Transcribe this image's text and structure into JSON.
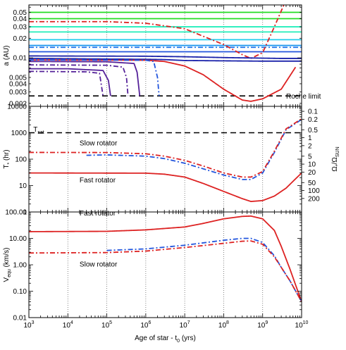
{
  "chart_data": [
    {
      "type": "line",
      "panel": "top",
      "ylabel": "a (AU)",
      "yscale": "log",
      "xscale": "log",
      "xlim": [
        1000,
        10000000000
      ],
      "ylim": [
        0.0018,
        0.065
      ],
      "grid": "vertical dotted at decades",
      "y_ticks": [
        {
          "v": 0.05,
          "label": "0.05"
        },
        {
          "v": 0.04,
          "label": "0.04"
        },
        {
          "v": 0.03,
          "label": "0.03"
        },
        {
          "v": 0.02,
          "label": "0.02"
        },
        {
          "v": 0.01,
          "label": "0.01"
        },
        {
          "v": 0.005,
          "label": "0.005"
        },
        {
          "v": 0.004,
          "label": "0.004"
        },
        {
          "v": 0.003,
          "label": "0.003"
        },
        {
          "v": 0.002,
          "label": "0.002"
        }
      ],
      "annotations": [
        {
          "text": "Roche limit",
          "x": 4000000000,
          "y": 0.0026
        }
      ],
      "roche_limit": 0.0026,
      "series": [
        {
          "color": "#22dd22",
          "style": "solid",
          "x": [
            1000,
            10000000000
          ],
          "y": [
            0.05,
            0.05
          ]
        },
        {
          "color": "#22dd22",
          "style": "solid",
          "x": [
            1000,
            10000000000
          ],
          "y": [
            0.04,
            0.04
          ]
        },
        {
          "color": "#22eebb",
          "style": "solid",
          "x": [
            1000,
            10000000000
          ],
          "y": [
            0.03,
            0.03
          ]
        },
        {
          "color": "#22eebb",
          "style": "solid",
          "x": [
            1000,
            10000000000
          ],
          "y": [
            0.025,
            0.025
          ]
        },
        {
          "color": "#22ccee",
          "style": "solid",
          "x": [
            1000,
            10000000000
          ],
          "y": [
            0.019,
            0.019
          ]
        },
        {
          "color": "#2299ee",
          "style": "solid",
          "x": [
            1000,
            10000000000
          ],
          "y": [
            0.0155,
            0.0155
          ]
        },
        {
          "color": "#2277ee",
          "style": "dashdot",
          "x": [
            1000,
            1000000000,
            10000000000
          ],
          "y": [
            0.0145,
            0.0145,
            0.0145
          ]
        },
        {
          "color": "#2255dd",
          "style": "solid",
          "x": [
            1000,
            10000000000
          ],
          "y": [
            0.0124,
            0.0124
          ]
        },
        {
          "color": "#dd2222",
          "style": "dashdot",
          "x": [
            1000,
            100000,
            1000000,
            10000000,
            100000000,
            300000000,
            500000000,
            1000000000,
            2000000000,
            3500000000
          ],
          "y": [
            0.036,
            0.036,
            0.034,
            0.028,
            0.016,
            0.0112,
            0.0098,
            0.012,
            0.03,
            0.065
          ]
        },
        {
          "color": "#1a22aa",
          "style": "solid",
          "x": [
            1000,
            1000000,
            10000000,
            100000000,
            1000000000,
            3000000000,
            10000000000
          ],
          "y": [
            0.0107,
            0.0106,
            0.0104,
            0.0101,
            0.0099,
            0.0098,
            0.0098
          ]
        },
        {
          "color": "#1a22aa",
          "style": "solid",
          "x": [
            1000,
            1000000,
            3000000,
            10000000,
            100000000,
            1000000000,
            10000000000
          ],
          "y": [
            0.0098,
            0.0095,
            0.0094,
            0.0091,
            0.009,
            0.0089,
            0.0089
          ]
        },
        {
          "color": "#dd2222",
          "style": "solid",
          "x": [
            1000,
            1000000,
            3000000,
            10000000,
            30000000,
            100000000,
            300000000,
            500000000,
            1000000000,
            3000000000,
            7000000000
          ],
          "y": [
            0.0093,
            0.0092,
            0.0088,
            0.0075,
            0.0055,
            0.0033,
            0.00225,
            0.00215,
            0.00235,
            0.0033,
            0.0072
          ]
        },
        {
          "color": "#2255dd",
          "style": "dashdot",
          "x": [
            1000,
            1000000,
            1600000,
            2000000,
            2200000
          ],
          "y": [
            0.0093,
            0.0092,
            0.0088,
            0.005,
            0.0026
          ]
        },
        {
          "color": "#552299",
          "style": "solid",
          "x": [
            1000,
            100000,
            500000,
            600000,
            700000
          ],
          "y": [
            0.0088,
            0.0087,
            0.0082,
            0.006,
            0.0026
          ]
        },
        {
          "color": "#552299",
          "style": "dashdot",
          "x": [
            1000,
            100000,
            260000,
            320000,
            350000
          ],
          "y": [
            0.0078,
            0.0077,
            0.0072,
            0.005,
            0.0026
          ]
        },
        {
          "color": "#552299",
          "style": "solid",
          "x": [
            1000,
            10000,
            80000,
            110000,
            125000
          ],
          "y": [
            0.0068,
            0.0068,
            0.0064,
            0.0045,
            0.0026
          ]
        },
        {
          "color": "#552299",
          "style": "dashdot",
          "x": [
            1000,
            30000,
            65000,
            80000
          ],
          "y": [
            0.0062,
            0.0061,
            0.0058,
            0.0026
          ]
        }
      ]
    },
    {
      "type": "line",
      "panel": "middle",
      "ylabel": "T* (hr)",
      "ylabel_right": "Ω*/ΩSUN",
      "yscale": "log",
      "xscale": "log",
      "xlim": [
        1000,
        10000000000
      ],
      "ylim": [
        1,
        10000
      ],
      "y_ticks": [
        {
          "v": 10000,
          "label": "10000"
        },
        {
          "v": 1000,
          "label": "1000"
        },
        {
          "v": 100,
          "label": "100"
        },
        {
          "v": 10,
          "label": "10"
        },
        {
          "v": 1,
          "label": "1"
        }
      ],
      "right_ticks": [
        "0.1",
        "0.2",
        "0.5",
        "1",
        "2",
        "5",
        "10",
        "20",
        "50",
        "100",
        "200"
      ],
      "right_tick_omega": [
        0.1,
        0.2,
        0.5,
        1,
        2,
        5,
        10,
        20,
        50,
        100,
        200
      ],
      "annotations": [
        {
          "text": "Tsat",
          "x": 1300,
          "y": 1400
        },
        {
          "text": "Slow rotator",
          "x": 20000,
          "y": 420
        },
        {
          "text": "Fast rotator",
          "x": 20000,
          "y": 17
        }
      ],
      "t_sat": 1000,
      "series": [
        {
          "color": "#2255dd",
          "style": "dashdot",
          "x": [
            30000,
            100000,
            1000000,
            3000000,
            10000000,
            30000000,
            100000000,
            300000000,
            500000000,
            1000000000,
            2000000000,
            4000000000,
            10000000000
          ],
          "y": [
            140,
            145,
            130,
            105,
            70,
            43,
            25,
            17,
            17,
            30,
            180,
            1300,
            3200
          ]
        },
        {
          "color": "#dd2222",
          "style": "dashdot",
          "x": [
            1000,
            100000,
            1000000,
            3000000,
            10000000,
            30000000,
            100000000,
            300000000,
            500000000,
            1000000000,
            2000000000,
            4000000000,
            10000000000
          ],
          "y": [
            180,
            178,
            160,
            130,
            90,
            55,
            30,
            21,
            21,
            34,
            200,
            1400,
            3400
          ]
        },
        {
          "color": "#dd2222",
          "style": "solid",
          "x": [
            1000,
            1000000,
            3000000,
            10000000,
            30000000,
            100000000,
            300000000,
            500000000,
            1000000000,
            2000000000,
            4000000000,
            7000000000,
            10000000000
          ],
          "y": [
            30,
            29.5,
            27,
            21,
            12,
            6,
            3.2,
            2.5,
            2.7,
            4,
            8,
            18,
            30
          ]
        }
      ]
    },
    {
      "type": "line",
      "panel": "bottom",
      "ylabel": "Vequ (km/s)",
      "xlabel": "Age of star - t0 (yrs)",
      "yscale": "log",
      "xscale": "log",
      "xlim": [
        1000,
        10000000000
      ],
      "ylim": [
        0.01,
        100
      ],
      "y_ticks": [
        {
          "v": 100,
          "label": "100.00"
        },
        {
          "v": 10,
          "label": "10.00"
        },
        {
          "v": 1,
          "label": "1.00"
        },
        {
          "v": 0.1,
          "label": "0.10"
        },
        {
          "v": 0.01,
          "label": "0.01"
        }
      ],
      "x_ticks": [
        {
          "v": 1000,
          "base": "10",
          "exp": "3"
        },
        {
          "v": 10000,
          "base": "10",
          "exp": "4"
        },
        {
          "v": 100000,
          "base": "10",
          "exp": "5"
        },
        {
          "v": 1000000,
          "base": "10",
          "exp": "6"
        },
        {
          "v": 10000000,
          "base": "10",
          "exp": "7"
        },
        {
          "v": 100000000,
          "base": "10",
          "exp": "8"
        },
        {
          "v": 1000000000,
          "base": "10",
          "exp": "9"
        },
        {
          "v": 10000000000,
          "base": "10",
          "exp": "10"
        }
      ],
      "annotations": [
        {
          "text": "Fast rotator",
          "x": 20000,
          "y": 95
        },
        {
          "text": "Slow rotator",
          "x": 20000,
          "y": 1.1
        }
      ],
      "series": [
        {
          "color": "#dd2222",
          "style": "solid",
          "x": [
            1000,
            100000,
            1000000,
            10000000,
            30000000,
            100000000,
            300000000,
            500000000,
            1000000000,
            2000000000,
            3000000000,
            5000000000,
            10000000000
          ],
          "y": [
            18,
            18.5,
            21,
            27,
            37,
            55,
            68,
            70,
            55,
            20,
            5,
            0.7,
            0.04
          ]
        },
        {
          "color": "#2255dd",
          "style": "dashdot",
          "x": [
            100000,
            1000000,
            10000000,
            100000000,
            300000000,
            500000000,
            1000000000,
            2000000000,
            3000000000,
            5000000000,
            10000000000
          ],
          "y": [
            3.5,
            4,
            5.5,
            8.5,
            10,
            10,
            7,
            2.2,
            0.8,
            0.25,
            0.04
          ]
        },
        {
          "color": "#dd2222",
          "style": "dashdot",
          "x": [
            1000,
            100000,
            1000000,
            10000000,
            100000000,
            300000000,
            500000000,
            1000000000,
            2000000000,
            3000000000,
            5000000000,
            10000000000
          ],
          "y": [
            2.8,
            2.9,
            3.3,
            4.5,
            6.5,
            7.8,
            8,
            6,
            2,
            0.8,
            0.25,
            0.04
          ]
        }
      ]
    }
  ]
}
